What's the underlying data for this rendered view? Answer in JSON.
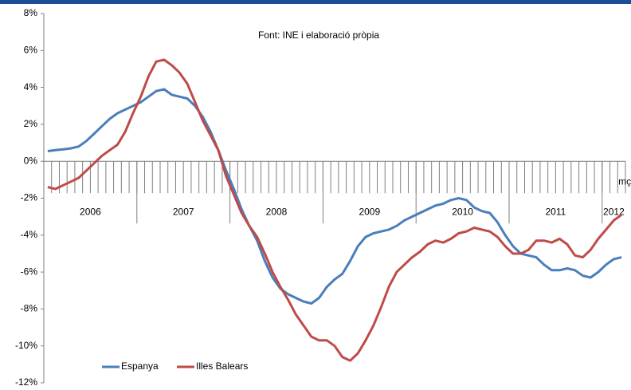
{
  "chart_data": {
    "type": "line",
    "annotation": "Font: INE i elaboració pròpia",
    "categories": [
      null,
      null,
      null,
      null,
      null,
      null,
      null,
      null,
      null,
      null,
      null,
      null,
      null,
      null,
      null,
      null,
      null,
      null,
      null,
      null,
      null,
      null,
      null,
      null,
      null,
      null,
      null,
      null,
      null,
      null,
      null,
      null,
      null,
      null,
      null,
      null,
      null,
      null,
      null,
      null,
      null,
      null,
      null,
      null,
      null,
      null,
      null,
      null,
      null,
      null,
      null,
      null,
      null,
      null,
      null,
      null,
      null,
      null,
      null,
      null,
      null,
      null,
      null,
      null,
      null,
      null,
      null,
      null,
      null,
      null,
      null,
      null,
      null,
      null,
      "mç"
    ],
    "year_groups": [
      {
        "label": "2006",
        "months": 12
      },
      {
        "label": "2007",
        "months": 12
      },
      {
        "label": "2008",
        "months": 12
      },
      {
        "label": "2009",
        "months": 12
      },
      {
        "label": "2010",
        "months": 12
      },
      {
        "label": "2011",
        "months": 12
      },
      {
        "label": "2012",
        "months": 3
      }
    ],
    "series": [
      {
        "name": "Espanya",
        "color": "#4a7ebb",
        "values": [
          0.55,
          0.6,
          0.65,
          0.7,
          0.8,
          1.1,
          1.5,
          1.9,
          2.3,
          2.6,
          2.8,
          3.0,
          3.2,
          3.5,
          3.8,
          3.9,
          3.6,
          3.5,
          3.4,
          3.0,
          2.4,
          1.6,
          0.6,
          -0.5,
          -1.5,
          -2.6,
          -3.5,
          -4.3,
          -5.4,
          -6.3,
          -6.9,
          -7.2,
          -7.4,
          -7.6,
          -7.7,
          -7.4,
          -6.8,
          -6.4,
          -6.1,
          -5.4,
          -4.6,
          -4.1,
          -3.9,
          -3.8,
          -3.7,
          -3.5,
          -3.2,
          -3.0,
          -2.8,
          -2.6,
          -2.4,
          -2.3,
          -2.1,
          -2.0,
          -2.1,
          -2.5,
          -2.7,
          -2.8,
          -3.3,
          -4.0,
          -4.6,
          -5.0,
          -5.1,
          -5.2,
          -5.6,
          -5.9,
          -5.9,
          -5.8,
          -5.9,
          -6.2,
          -6.3,
          -6.0,
          -5.6,
          -5.3,
          -5.2
        ]
      },
      {
        "name": "Illes Balears",
        "color": "#be4b48",
        "values": [
          -1.4,
          -1.5,
          -1.3,
          -1.1,
          -0.9,
          -0.5,
          -0.1,
          0.3,
          0.6,
          0.9,
          1.6,
          2.6,
          3.5,
          4.6,
          5.4,
          5.5,
          5.2,
          4.8,
          4.2,
          3.2,
          2.2,
          1.4,
          0.6,
          -0.8,
          -1.8,
          -2.8,
          -3.5,
          -4.1,
          -5.0,
          -6.0,
          -6.8,
          -7.5,
          -8.3,
          -8.9,
          -9.5,
          -9.7,
          -9.7,
          -10.0,
          -10.6,
          -10.8,
          -10.4,
          -9.7,
          -8.9,
          -7.9,
          -6.8,
          -6.0,
          -5.6,
          -5.2,
          -4.9,
          -4.5,
          -4.3,
          -4.4,
          -4.2,
          -3.9,
          -3.8,
          -3.6,
          -3.7,
          -3.8,
          -4.1,
          -4.6,
          -5.0,
          -5.0,
          -4.8,
          -4.3,
          -4.3,
          -4.4,
          -4.2,
          -4.5,
          -5.1,
          -5.2,
          -4.8,
          -4.2,
          -3.7,
          -3.2,
          -2.9
        ]
      }
    ],
    "ylim": [
      -12,
      8
    ],
    "yticks": [
      {
        "value": -12,
        "label": "-12%"
      },
      {
        "value": -10,
        "label": "-10%"
      },
      {
        "value": -8,
        "label": "-8%"
      },
      {
        "value": -6,
        "label": "-6%"
      },
      {
        "value": -4,
        "label": "-4%"
      },
      {
        "value": -2,
        "label": "-2%"
      },
      {
        "value": 0,
        "label": "0%"
      },
      {
        "value": 2,
        "label": "2%"
      },
      {
        "value": 4,
        "label": "4%"
      },
      {
        "value": 6,
        "label": "6%"
      },
      {
        "value": 8,
        "label": "8%"
      }
    ],
    "legend": "lower left"
  }
}
